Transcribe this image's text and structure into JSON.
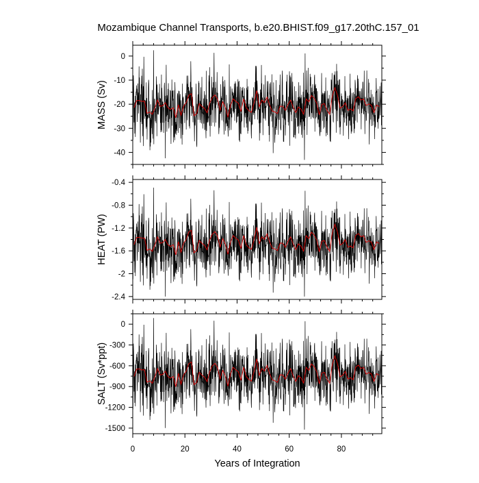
{
  "figure": {
    "title": "Mozambique Channel Transports, b.e20.BHIST.f09_g17.20thC.157_01"
  },
  "chart_data": [
    {
      "type": "line",
      "ylabel": "MASS (Sv)",
      "xlabel": "",
      "xlim": [
        0,
        95.5
      ],
      "ylim": [
        -45,
        4.5
      ],
      "yticks": [
        0,
        -10,
        -20,
        -30,
        -40
      ],
      "xticks": [
        0,
        20,
        40,
        60,
        80
      ],
      "series": [
        {
          "color": "#000000",
          "kind": "monthly",
          "mean": -21,
          "amplitude": 6.5,
          "min": -45,
          "max": 4
        },
        {
          "color": "#e00000",
          "kind": "annual",
          "mean": -20.5,
          "amplitude": 2.8
        }
      ]
    },
    {
      "type": "line",
      "ylabel": "HEAT (PW)",
      "xlabel": "",
      "xlim": [
        0,
        95.5
      ],
      "ylim": [
        -2.45,
        -0.35
      ],
      "yticks": [
        -0.4,
        -0.8,
        -1.2,
        -1.6,
        -2.0,
        -2.4
      ],
      "xticks": [
        0,
        20,
        40,
        60,
        80
      ],
      "series": [
        {
          "color": "#000000",
          "kind": "monthly",
          "mean": -1.5,
          "amplitude": 0.28,
          "min": -2.4,
          "max": -0.4
        },
        {
          "color": "#e00000",
          "kind": "annual",
          "mean": -1.45,
          "amplitude": 0.12
        }
      ]
    },
    {
      "type": "line",
      "ylabel": "SALT (Sv*ppt)",
      "xlabel": "Years of Integration",
      "xlim": [
        0,
        95.5
      ],
      "ylim": [
        -1580,
        150
      ],
      "yticks": [
        0,
        -300,
        -600,
        -900,
        -1200,
        -1500
      ],
      "yticklabels": [
        "0",
        "-300",
        "-600",
        "-900",
        "-1200",
        "-1500"
      ],
      "xticks": [
        0,
        20,
        40,
        60,
        80
      ],
      "series": [
        {
          "color": "#000000",
          "kind": "monthly",
          "mean": -740,
          "amplitude": 230,
          "min": -1560,
          "max": 140
        },
        {
          "color": "#e00000",
          "kind": "annual",
          "mean": -720,
          "amplitude": 100
        }
      ]
    }
  ]
}
